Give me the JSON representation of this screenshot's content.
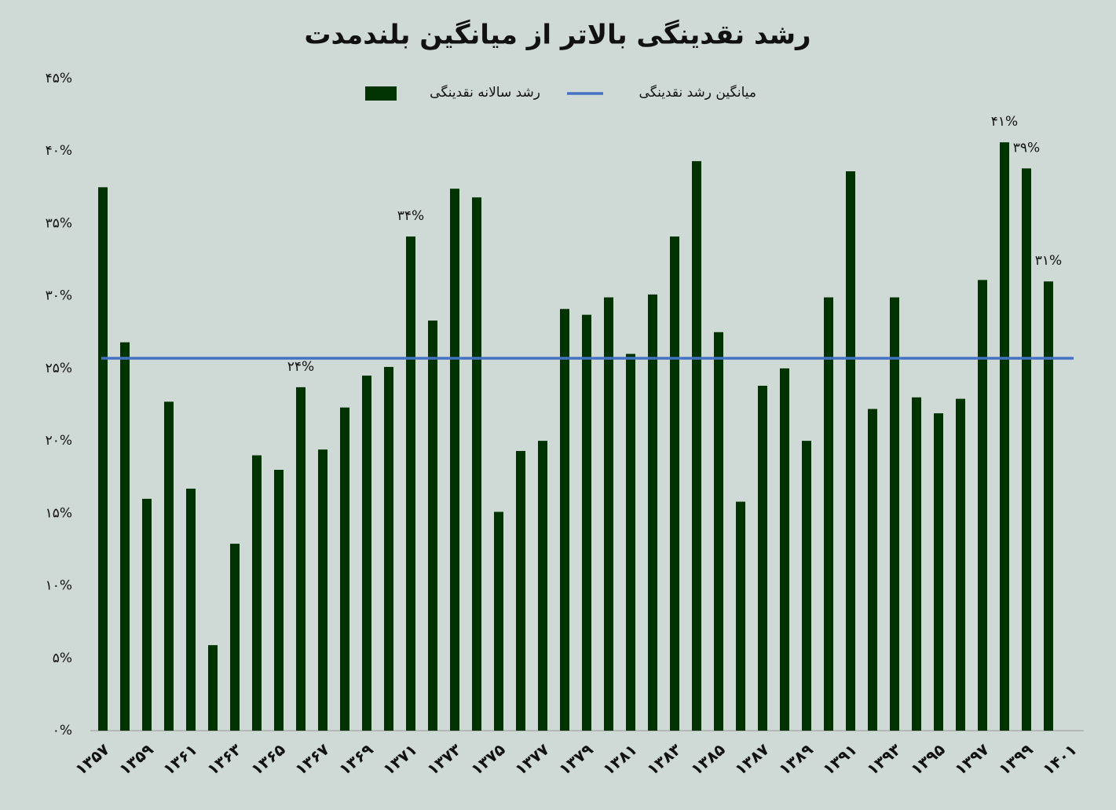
{
  "chart_data": {
    "type": "bar",
    "title": "رشد نقدینگی بالاتر از میانگین بلندمدت",
    "categories": [
      "۱۳۵۷",
      null,
      "۱۳۵۹",
      null,
      "۱۳۶۱",
      null,
      "۱۳۶۳",
      null,
      "۱۳۶۵",
      null,
      "۱۳۶۷",
      null,
      "۱۳۶۹",
      null,
      "۱۳۷۱",
      null,
      "۱۳۷۳",
      null,
      "۱۳۷۵",
      null,
      "۱۳۷۷",
      null,
      "۱۳۷۹",
      null,
      "۱۳۸۱",
      null,
      "۱۳۸۳",
      null,
      "۱۳۸۵",
      null,
      "۱۳۸۷",
      null,
      "۱۳۸۹",
      null,
      "۱۳۹۱",
      null,
      "۱۳۹۳",
      null,
      "۱۳۹۵",
      null,
      "۱۳۹۷",
      null,
      "۱۳۹۹",
      null,
      "۱۴۰۱"
    ],
    "series": [
      {
        "name": "رشد سالانه نقدینگی",
        "color": "#013300",
        "values": [
          37.5,
          26.8,
          16.0,
          22.7,
          16.7,
          5.9,
          12.9,
          19.0,
          18.0,
          23.7,
          19.4,
          22.3,
          24.5,
          25.1,
          34.1,
          28.3,
          37.4,
          36.8,
          15.1,
          19.3,
          20.0,
          29.1,
          28.7,
          29.9,
          26.0,
          30.1,
          34.1,
          39.3,
          27.5,
          15.8,
          23.8,
          25.0,
          20.0,
          29.9,
          38.6,
          22.2,
          29.9,
          23.0,
          21.9,
          22.9,
          31.1,
          40.6,
          38.8,
          31.0,
          null
        ],
        "value_labels": [
          null,
          null,
          null,
          null,
          null,
          null,
          null,
          null,
          null,
          "۲۴%",
          null,
          null,
          null,
          null,
          "۳۴%",
          null,
          null,
          null,
          null,
          null,
          null,
          null,
          null,
          null,
          null,
          null,
          null,
          null,
          null,
          null,
          null,
          null,
          null,
          null,
          null,
          null,
          null,
          null,
          null,
          null,
          null,
          "۴۱%",
          "۳۹%",
          "۳۱%",
          null
        ]
      }
    ],
    "reference_line": {
      "name": "میانگین رشد نقدینگی",
      "color": "#4472c4",
      "value": 25.7
    },
    "ylim": [
      0,
      45
    ],
    "yticks": [
      {
        "value": 0,
        "label": "۰%"
      },
      {
        "value": 5,
        "label": "۵%"
      },
      {
        "value": 10,
        "label": "۱۰%"
      },
      {
        "value": 15,
        "label": "۱۵%"
      },
      {
        "value": 20,
        "label": "۲۰%"
      },
      {
        "value": 25,
        "label": "۲۵%"
      },
      {
        "value": 30,
        "label": "۳۰%"
      },
      {
        "value": 35,
        "label": "۳۵%"
      },
      {
        "value": 40,
        "label": "۴۰%"
      },
      {
        "value": 45,
        "label": "۴۵%"
      }
    ],
    "grid": false
  }
}
